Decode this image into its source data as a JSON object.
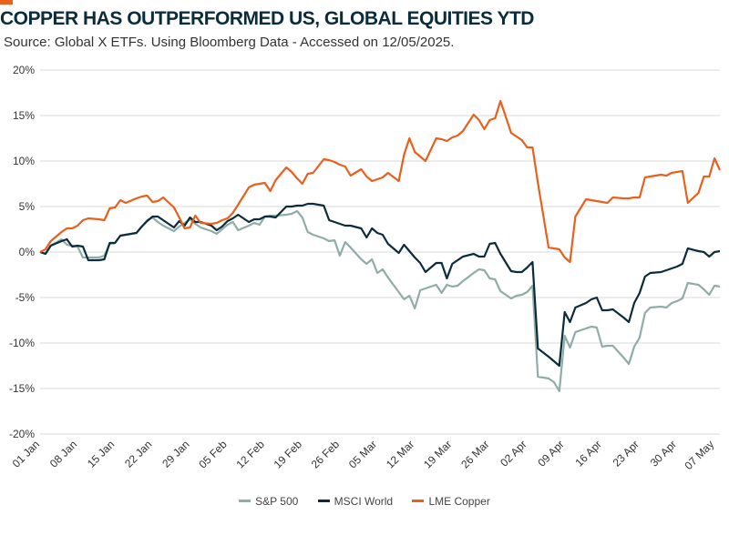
{
  "header": {
    "title": "COPPER HAS OUTPERFORMED US, GLOBAL EQUITIES YTD",
    "subtitle": "Source: Global X ETFs. Using Bloomberg Data - Accessed on 12/05/2025.",
    "accent_color": "#E8601C"
  },
  "chart_data": {
    "type": "line",
    "title": "COPPER HAS OUTPERFORMED US, GLOBAL EQUITIES YTD",
    "xlabel": "",
    "ylabel": "",
    "ylim": [
      -20,
      20
    ],
    "y_ticks": [
      20,
      15,
      10,
      5,
      0,
      -5,
      -10,
      -15,
      -20
    ],
    "y_tick_labels": [
      "20%",
      "15%",
      "10%",
      "5%",
      "0%",
      "-5%",
      "-10%",
      "-15%",
      "-20%"
    ],
    "x_range": [
      0,
      127
    ],
    "x_ticks": [
      0,
      7,
      14,
      21,
      28,
      35,
      42,
      49,
      56,
      63,
      70,
      77,
      84,
      91,
      98,
      105,
      112,
      119,
      126
    ],
    "x_tick_labels": [
      "01 Jan",
      "08 Jan",
      "15 Jan",
      "22 Jan",
      "29 Jan",
      "05 Feb",
      "12 Feb",
      "19 Feb",
      "26 Feb",
      "05 Mar",
      "12 Mar",
      "19 Mar",
      "26 Mar",
      "02 Apr",
      "09 Apr",
      "16 Apr",
      "23 Apr",
      "30 Apr",
      "07 May"
    ],
    "grid": true,
    "legend_position": "bottom",
    "x": [
      0,
      1,
      2,
      4,
      5,
      6,
      7,
      8,
      9,
      11,
      12,
      13,
      14,
      15,
      16,
      18,
      19,
      20,
      21,
      22,
      23,
      25,
      26,
      27,
      28,
      29,
      30,
      32,
      33,
      34,
      35,
      36,
      37,
      39,
      40,
      41,
      42,
      43,
      44,
      46,
      47,
      48,
      49,
      50,
      51,
      53,
      54,
      55,
      56,
      57,
      58,
      60,
      61,
      62,
      63,
      64,
      65,
      67,
      68,
      69,
      70,
      71,
      72,
      74,
      75,
      76,
      77,
      78,
      79,
      81,
      82,
      83,
      84,
      85,
      86,
      88,
      89,
      90,
      91,
      92,
      93,
      95,
      96,
      97,
      98,
      99,
      100,
      102,
      103,
      104,
      105,
      106,
      107,
      109,
      110,
      111,
      112,
      113,
      114,
      116,
      117,
      118,
      119,
      120,
      121,
      123,
      124,
      125,
      126,
      127
    ],
    "series": [
      {
        "name": "S&P 500",
        "color": "#8FADA8",
        "values": [
          0.0,
          -0.2,
          0.7,
          1.4,
          0.8,
          0.7,
          0.6,
          -0.6,
          -0.6,
          -0.6,
          -0.4,
          0.9,
          1.0,
          1.8,
          1.9,
          2.1,
          2.8,
          3.5,
          3.8,
          3.3,
          2.9,
          2.3,
          2.8,
          3.2,
          3.6,
          3.1,
          2.7,
          2.3,
          2.0,
          2.5,
          3.0,
          3.3,
          2.4,
          2.9,
          3.2,
          3.0,
          3.9,
          4.0,
          4.0,
          4.1,
          4.2,
          4.5,
          3.8,
          2.2,
          1.9,
          1.5,
          1.2,
          1.3,
          -0.4,
          1.1,
          0.5,
          -0.8,
          -1.3,
          -0.8,
          -2.3,
          -1.9,
          -2.8,
          -4.4,
          -5.2,
          -4.8,
          -6.2,
          -4.2,
          -4.0,
          -3.6,
          -4.5,
          -3.6,
          -3.8,
          -3.7,
          -3.2,
          -2.3,
          -1.9,
          -2.0,
          -2.9,
          -3.0,
          -4.3,
          -5.1,
          -4.8,
          -4.7,
          -4.4,
          -3.7,
          -13.7,
          -13.9,
          -14.3,
          -15.3,
          -9.2,
          -10.5,
          -8.8,
          -8.4,
          -8.2,
          -8.3,
          -10.4,
          -10.3,
          -10.3,
          -11.6,
          -12.3,
          -10.4,
          -9.4,
          -6.7,
          -6.1,
          -6.0,
          -6.1,
          -5.6,
          -5.4,
          -5.1,
          -3.4,
          -3.6,
          -4.1,
          -4.7,
          -3.7,
          -3.8
        ]
      },
      {
        "name": "MSCI World",
        "color": "#0B2D3B",
        "values": [
          0.0,
          -0.2,
          0.7,
          1.2,
          1.4,
          0.6,
          0.7,
          0.6,
          -0.9,
          -0.9,
          -0.8,
          1.0,
          1.0,
          1.8,
          1.9,
          2.1,
          2.8,
          3.4,
          3.9,
          3.9,
          3.5,
          2.7,
          3.4,
          2.9,
          3.8,
          3.3,
          3.3,
          2.9,
          2.4,
          2.8,
          3.4,
          3.7,
          4.1,
          3.3,
          3.6,
          3.6,
          3.9,
          3.9,
          3.8,
          5.0,
          5.0,
          5.1,
          5.1,
          5.3,
          5.3,
          5.1,
          3.5,
          3.3,
          3.1,
          2.9,
          2.9,
          2.6,
          1.6,
          2.6,
          2.1,
          1.9,
          0.9,
          -0.1,
          0.8,
          0.1,
          -0.6,
          -1.2,
          -2.2,
          -1.2,
          -1.2,
          -2.9,
          -1.3,
          -0.9,
          -0.5,
          -0.2,
          -0.5,
          -0.5,
          0.9,
          1.0,
          -0.2,
          -2.1,
          -2.2,
          -2.2,
          -1.7,
          -1.1,
          -10.6,
          -11.5,
          -12.0,
          -12.5,
          -6.6,
          -7.7,
          -6.1,
          -5.6,
          -5.2,
          -5.0,
          -6.4,
          -6.4,
          -6.3,
          -7.2,
          -7.7,
          -5.6,
          -4.5,
          -2.7,
          -2.3,
          -2.2,
          -2.0,
          -1.8,
          -1.6,
          -1.3,
          0.4,
          0.1,
          0.0,
          -0.5,
          0.0,
          0.1
        ]
      },
      {
        "name": "LME Copper",
        "color": "#E8601C",
        "values": [
          0.0,
          0.3,
          1.2,
          2.2,
          2.6,
          2.6,
          2.9,
          3.5,
          3.7,
          3.6,
          3.5,
          4.8,
          4.9,
          5.7,
          5.4,
          5.9,
          6.1,
          6.2,
          5.5,
          5.6,
          6.0,
          4.9,
          3.8,
          2.6,
          2.7,
          4.0,
          3.2,
          3.1,
          3.2,
          3.5,
          3.7,
          4.3,
          5.2,
          7.1,
          7.4,
          7.5,
          7.6,
          6.7,
          7.9,
          9.3,
          8.8,
          8.1,
          7.5,
          8.6,
          8.7,
          10.2,
          10.1,
          9.9,
          9.6,
          9.4,
          8.4,
          9.1,
          8.3,
          7.8,
          8.0,
          8.2,
          8.7,
          7.8,
          10.7,
          12.5,
          11.0,
          10.5,
          10.0,
          12.5,
          12.4,
          12.2,
          12.6,
          12.8,
          13.3,
          15.1,
          14.5,
          13.5,
          14.5,
          14.7,
          16.6,
          13.1,
          12.7,
          12.3,
          11.5,
          11.5,
          7.6,
          0.5,
          0.4,
          0.3,
          -0.6,
          -1.1,
          3.9,
          5.8,
          5.7,
          5.6,
          5.5,
          5.4,
          6.0,
          5.9,
          5.9,
          6.0,
          6.0,
          8.2,
          8.3,
          8.5,
          8.4,
          8.7,
          8.8,
          8.9,
          5.4,
          6.5,
          8.3,
          8.3,
          10.3,
          9.0
        ]
      }
    ]
  }
}
